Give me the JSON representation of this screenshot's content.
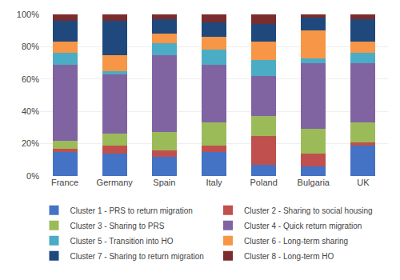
{
  "chart_data": {
    "type": "bar",
    "stacked": true,
    "categories": [
      "France",
      "Germany",
      "Spain",
      "Italy",
      "Poland",
      "Bulgaria",
      "UK"
    ],
    "series": [
      {
        "name": "Cluster 1 - PRS to return migration",
        "color": "#4472C4",
        "values": [
          15,
          14,
          12,
          15,
          7,
          6,
          19
        ]
      },
      {
        "name": "Cluster 2 - Sharing to social housing",
        "color": "#C0504D",
        "values": [
          2,
          5,
          4,
          4,
          18,
          8,
          2
        ]
      },
      {
        "name": "Cluster 3 - Sharing to PRS",
        "color": "#9BBB59",
        "values": [
          5,
          7,
          11,
          14,
          12,
          15,
          12
        ]
      },
      {
        "name": "Cluster 4 - Quick return migration",
        "color": "#8064A2",
        "values": [
          47,
          37,
          48,
          36,
          25,
          41,
          37
        ]
      },
      {
        "name": "Cluster 5 - Transition into HO",
        "color": "#4BACC6",
        "values": [
          7,
          2,
          7,
          9,
          10,
          3,
          6
        ]
      },
      {
        "name": "Cluster 6 - Long-term sharing",
        "color": "#F79646",
        "values": [
          7,
          10,
          6,
          8,
          11,
          17,
          7
        ]
      },
      {
        "name": "Cluster 7 - Sharing to return migration",
        "color": "#1F497D",
        "values": [
          13,
          21,
          9,
          9,
          11,
          8,
          14
        ]
      },
      {
        "name": "Cluster 8 - Long-term HO",
        "color": "#7B2C2C",
        "values": [
          4,
          4,
          3,
          5,
          6,
          2,
          3
        ]
      }
    ],
    "ylim": [
      0,
      100
    ],
    "yticks": [
      {
        "value": 0,
        "label": "0%"
      },
      {
        "value": 20,
        "label": "20%"
      },
      {
        "value": 40,
        "label": "40%"
      },
      {
        "value": 60,
        "label": "60%"
      },
      {
        "value": 80,
        "label": "80%"
      },
      {
        "value": 100,
        "label": "100%"
      }
    ],
    "grid": true,
    "legend": "bottom"
  }
}
